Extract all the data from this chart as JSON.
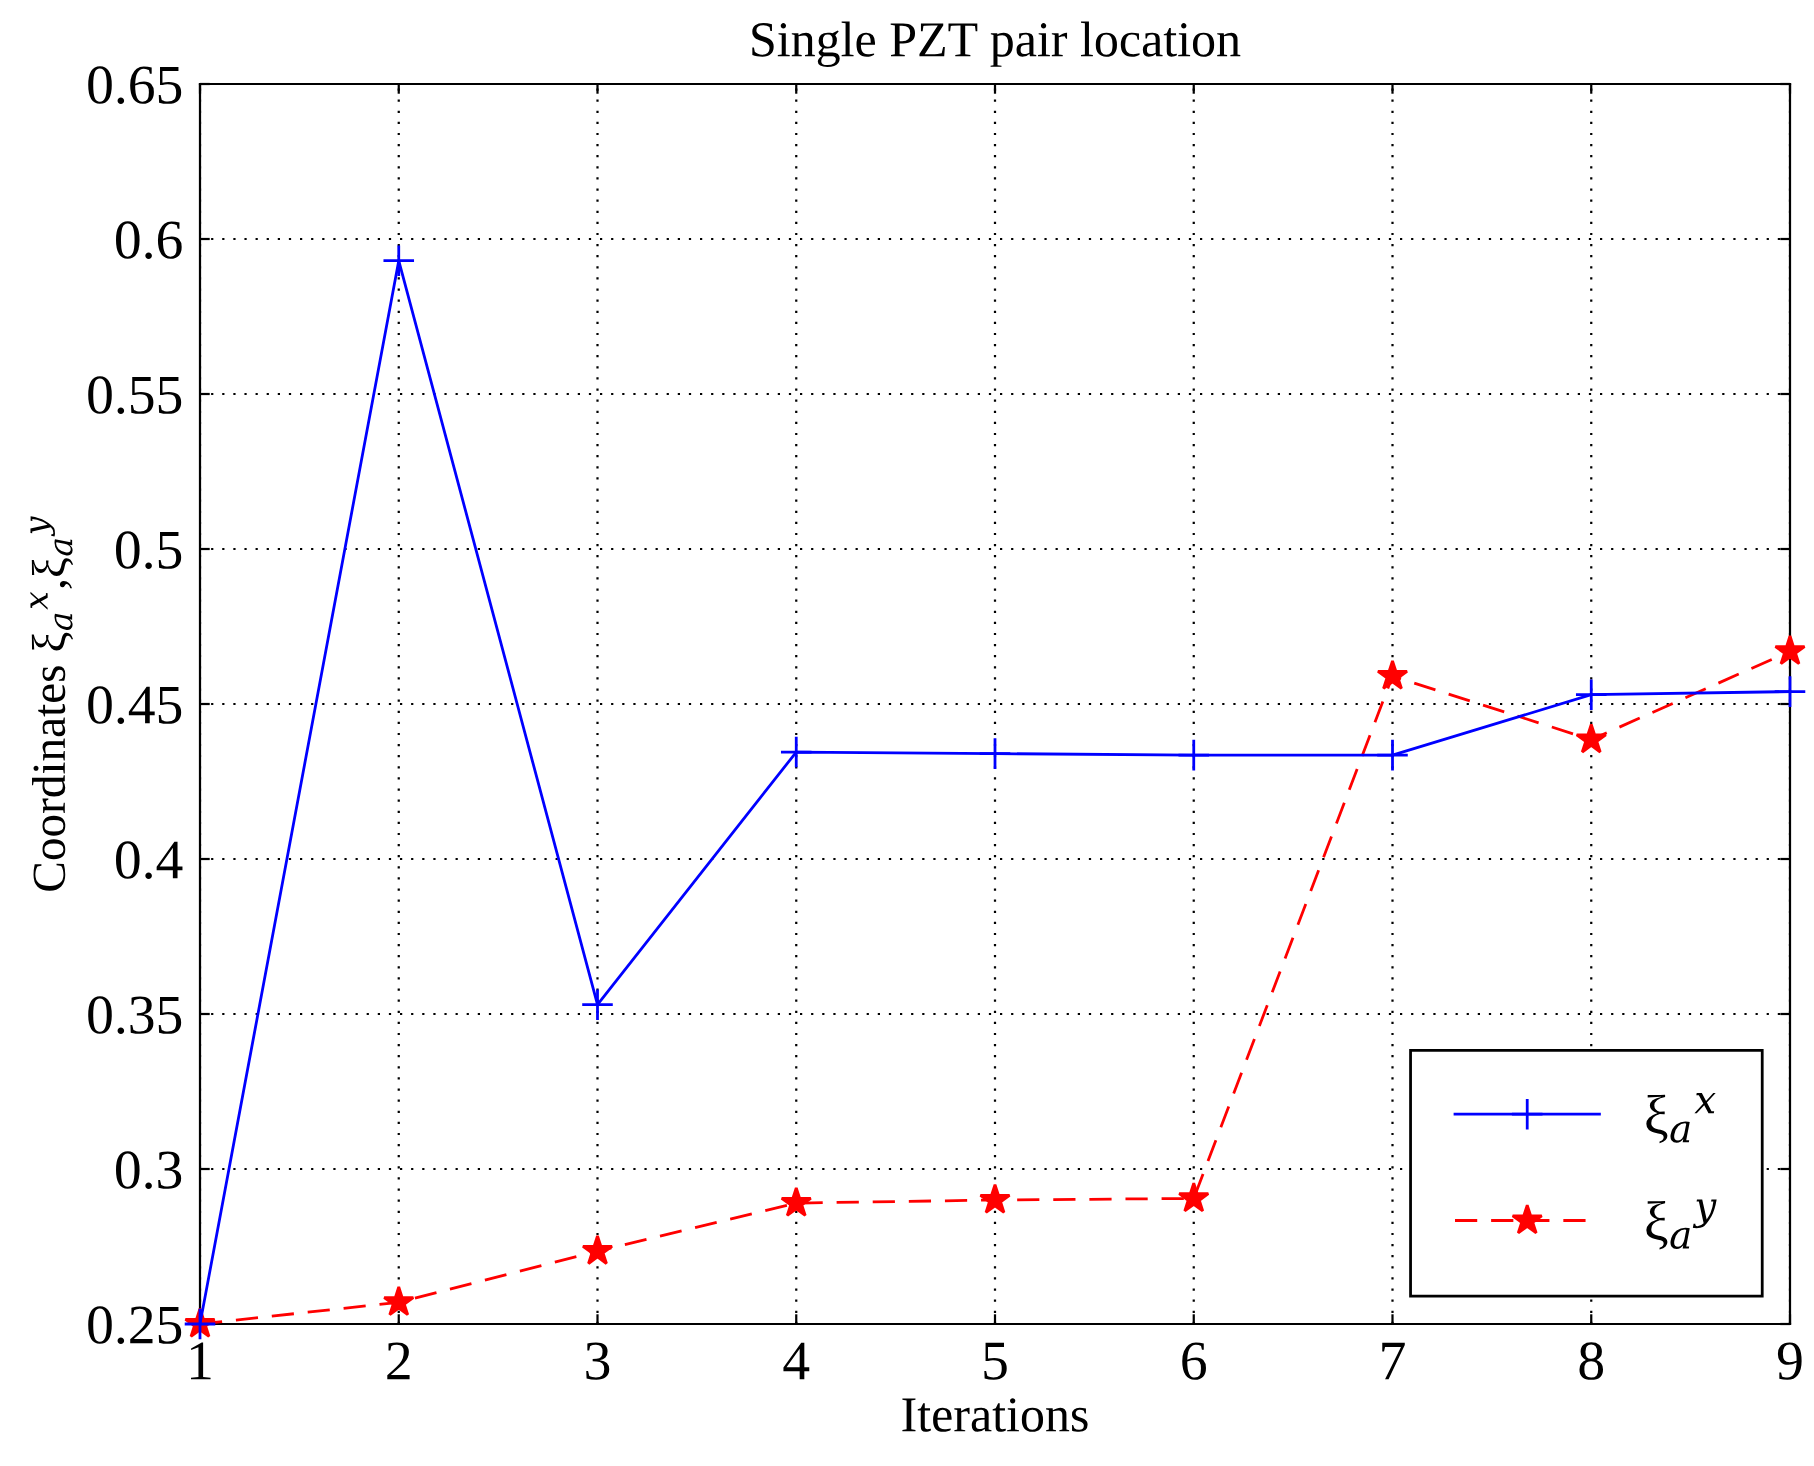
{
  "chart_data": {
    "type": "line",
    "title": "Single PZT pair location",
    "xlabel": "Iterations",
    "ylabel": "Coordinates ξ$_{a}$$^{x}$,ξ$_{a}$$^{y}$",
    "x": [
      1,
      2,
      3,
      4,
      5,
      6,
      7,
      8,
      9
    ],
    "series": [
      {
        "name": "ξ$_{a}$$^{x}$",
        "color": "#0000ff",
        "marker": "cross",
        "line_style": "solid",
        "values": [
          0.25,
          0.593,
          0.353,
          0.4345,
          0.434,
          0.4335,
          0.4335,
          0.453,
          0.454
        ]
      },
      {
        "name": "ξ$_{a}$$^{y}$",
        "color": "#ff0000",
        "marker": "star",
        "line_style": "dashed",
        "values": [
          0.25,
          0.257,
          0.2735,
          0.289,
          0.29,
          0.2905,
          0.459,
          0.4385,
          0.467
        ]
      }
    ],
    "xlim": [
      1,
      9
    ],
    "xticks": [
      1,
      2,
      3,
      4,
      5,
      6,
      7,
      8,
      9
    ],
    "ylim": [
      0.25,
      0.65
    ],
    "yticks": [
      0.25,
      0.3,
      0.35,
      0.4,
      0.45,
      0.5,
      0.55,
      0.6,
      0.65
    ],
    "grid": true,
    "legend": "bottom right"
  }
}
